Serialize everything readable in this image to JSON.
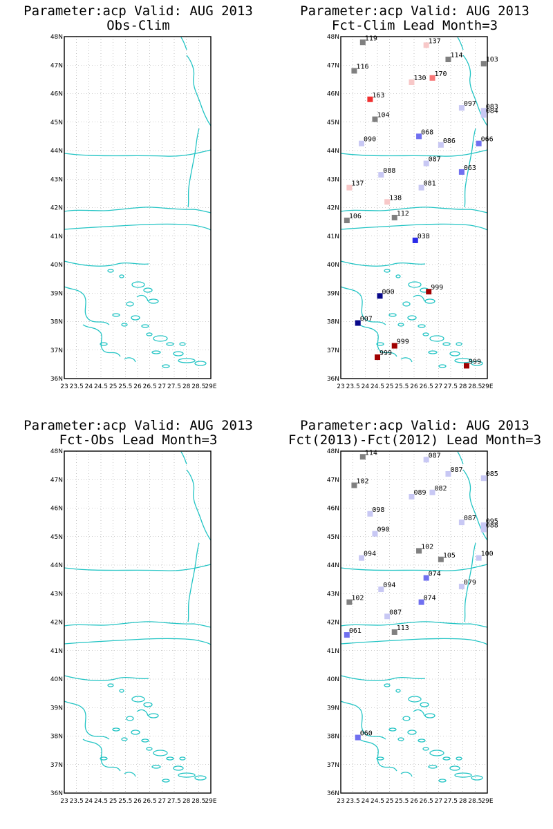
{
  "lat_labels": [
    "48N",
    "47N",
    "46N",
    "45N",
    "44N",
    "43N",
    "42N",
    "41N",
    "40N",
    "39N",
    "38N",
    "37N",
    "36N"
  ],
  "lon_labels": [
    "23",
    "23.5",
    "24",
    "24.5",
    "25",
    "25.5",
    "26",
    "26.5",
    "27",
    "27.5",
    "28",
    "28.5",
    "29E"
  ],
  "colors": {
    "coast": "#22c4c4",
    "grid": "#9a9a9a",
    "neutral": "#808080",
    "light_blue": "#c8c8f4",
    "mid_blue": "#7070f0",
    "blue": "#2a2ae8",
    "navy": "#08088a",
    "light_red": "#f8c8c8",
    "pink_red": "#f87878",
    "red": "#f03030",
    "dark_red": "#a00000"
  },
  "panels": [
    {
      "title_line1": "Parameter:acp Valid: AUG 2013",
      "title_line2": "Obs-Clim",
      "stations": []
    },
    {
      "title_line1": "Parameter:acp Valid: AUG 2013",
      "title_line2": "Fct-Clim Lead Month=3",
      "stations": [
        {
          "lon": 23.9,
          "lat": 47.8,
          "label": "119",
          "color": "neutral"
        },
        {
          "lon": 26.5,
          "lat": 47.7,
          "label": "137",
          "color": "light_red"
        },
        {
          "lon": 27.4,
          "lat": 47.2,
          "label": "114",
          "color": "neutral"
        },
        {
          "lon": 28.85,
          "lat": 47.05,
          "label": "103",
          "color": "neutral"
        },
        {
          "lon": 23.55,
          "lat": 46.8,
          "label": "116",
          "color": "neutral"
        },
        {
          "lon": 25.9,
          "lat": 46.4,
          "label": "130",
          "color": "light_red"
        },
        {
          "lon": 26.75,
          "lat": 46.55,
          "label": "170",
          "color": "pink_red"
        },
        {
          "lon": 24.2,
          "lat": 45.8,
          "label": "163",
          "color": "red"
        },
        {
          "lon": 27.95,
          "lat": 45.5,
          "label": "097",
          "color": "light_blue"
        },
        {
          "lon": 28.85,
          "lat": 45.4,
          "label": "083",
          "color": "light_blue"
        },
        {
          "lon": 28.85,
          "lat": 45.25,
          "label": "084",
          "color": "light_blue"
        },
        {
          "lon": 24.4,
          "lat": 45.1,
          "label": "104",
          "color": "neutral"
        },
        {
          "lon": 26.2,
          "lat": 44.5,
          "label": "068",
          "color": "mid_blue"
        },
        {
          "lon": 27.1,
          "lat": 44.2,
          "label": "086",
          "color": "light_blue"
        },
        {
          "lon": 28.65,
          "lat": 44.25,
          "label": "066",
          "color": "mid_blue"
        },
        {
          "lon": 23.85,
          "lat": 44.25,
          "label": "090",
          "color": "light_blue"
        },
        {
          "lon": 26.5,
          "lat": 43.55,
          "label": "087",
          "color": "light_blue"
        },
        {
          "lon": 24.65,
          "lat": 43.15,
          "label": "088",
          "color": "light_blue"
        },
        {
          "lon": 27.95,
          "lat": 43.25,
          "label": "063",
          "color": "mid_blue"
        },
        {
          "lon": 23.35,
          "lat": 42.7,
          "label": "137",
          "color": "light_red"
        },
        {
          "lon": 26.3,
          "lat": 42.7,
          "label": "081",
          "color": "light_blue"
        },
        {
          "lon": 24.9,
          "lat": 42.2,
          "label": "138",
          "color": "light_red"
        },
        {
          "lon": 23.25,
          "lat": 41.55,
          "label": "106",
          "color": "neutral"
        },
        {
          "lon": 25.2,
          "lat": 41.65,
          "label": "112",
          "color": "neutral"
        },
        {
          "lon": 26.05,
          "lat": 40.85,
          "label": "038",
          "color": "blue"
        },
        {
          "lon": 24.6,
          "lat": 38.9,
          "label": "000",
          "color": "navy"
        },
        {
          "lon": 26.6,
          "lat": 39.05,
          "label": "999",
          "color": "dark_red"
        },
        {
          "lon": 23.7,
          "lat": 37.95,
          "label": "007",
          "color": "navy"
        },
        {
          "lon": 25.2,
          "lat": 37.15,
          "label": "999",
          "color": "dark_red"
        },
        {
          "lon": 24.5,
          "lat": 36.75,
          "label": "999",
          "color": "dark_red"
        },
        {
          "lon": 28.15,
          "lat": 36.45,
          "label": "999",
          "color": "dark_red"
        }
      ]
    },
    {
      "title_line1": "Parameter:acp Valid: AUG 2013",
      "title_line2": "Fct-Obs Lead Month=3",
      "stations": []
    },
    {
      "title_line1": "Parameter:acp Valid: AUG 2013",
      "title_line2": "Fct(2013)-Fct(2012) Lead Month=3",
      "stations": [
        {
          "lon": 23.9,
          "lat": 47.8,
          "label": "114",
          "color": "neutral"
        },
        {
          "lon": 26.5,
          "lat": 47.7,
          "label": "087",
          "color": "light_blue"
        },
        {
          "lon": 27.4,
          "lat": 47.2,
          "label": "087",
          "color": "light_blue"
        },
        {
          "lon": 28.85,
          "lat": 47.05,
          "label": "085",
          "color": "light_blue"
        },
        {
          "lon": 23.55,
          "lat": 46.8,
          "label": "102",
          "color": "neutral"
        },
        {
          "lon": 25.9,
          "lat": 46.4,
          "label": "089",
          "color": "light_blue"
        },
        {
          "lon": 26.75,
          "lat": 46.55,
          "label": "082",
          "color": "light_blue"
        },
        {
          "lon": 24.2,
          "lat": 45.8,
          "label": "098",
          "color": "light_blue"
        },
        {
          "lon": 27.95,
          "lat": 45.5,
          "label": "087",
          "color": "light_blue"
        },
        {
          "lon": 28.85,
          "lat": 45.4,
          "label": "095",
          "color": "light_blue"
        },
        {
          "lon": 28.85,
          "lat": 45.25,
          "label": "088",
          "color": "light_blue"
        },
        {
          "lon": 24.4,
          "lat": 45.1,
          "label": "090",
          "color": "light_blue"
        },
        {
          "lon": 26.2,
          "lat": 44.5,
          "label": "102",
          "color": "neutral"
        },
        {
          "lon": 27.1,
          "lat": 44.2,
          "label": "105",
          "color": "neutral"
        },
        {
          "lon": 28.65,
          "lat": 44.25,
          "label": "100",
          "color": "light_blue"
        },
        {
          "lon": 23.85,
          "lat": 44.25,
          "label": "094",
          "color": "light_blue"
        },
        {
          "lon": 26.5,
          "lat": 43.55,
          "label": "074",
          "color": "mid_blue"
        },
        {
          "lon": 24.65,
          "lat": 43.15,
          "label": "094",
          "color": "light_blue"
        },
        {
          "lon": 27.95,
          "lat": 43.25,
          "label": "079",
          "color": "light_blue"
        },
        {
          "lon": 23.35,
          "lat": 42.7,
          "label": "102",
          "color": "neutral"
        },
        {
          "lon": 26.3,
          "lat": 42.7,
          "label": "074",
          "color": "mid_blue"
        },
        {
          "lon": 24.9,
          "lat": 42.2,
          "label": "087",
          "color": "light_blue"
        },
        {
          "lon": 23.25,
          "lat": 41.55,
          "label": "061",
          "color": "mid_blue"
        },
        {
          "lon": 25.2,
          "lat": 41.65,
          "label": "113",
          "color": "neutral"
        },
        {
          "lon": 23.7,
          "lat": 37.95,
          "label": "060",
          "color": "mid_blue"
        }
      ]
    }
  ]
}
